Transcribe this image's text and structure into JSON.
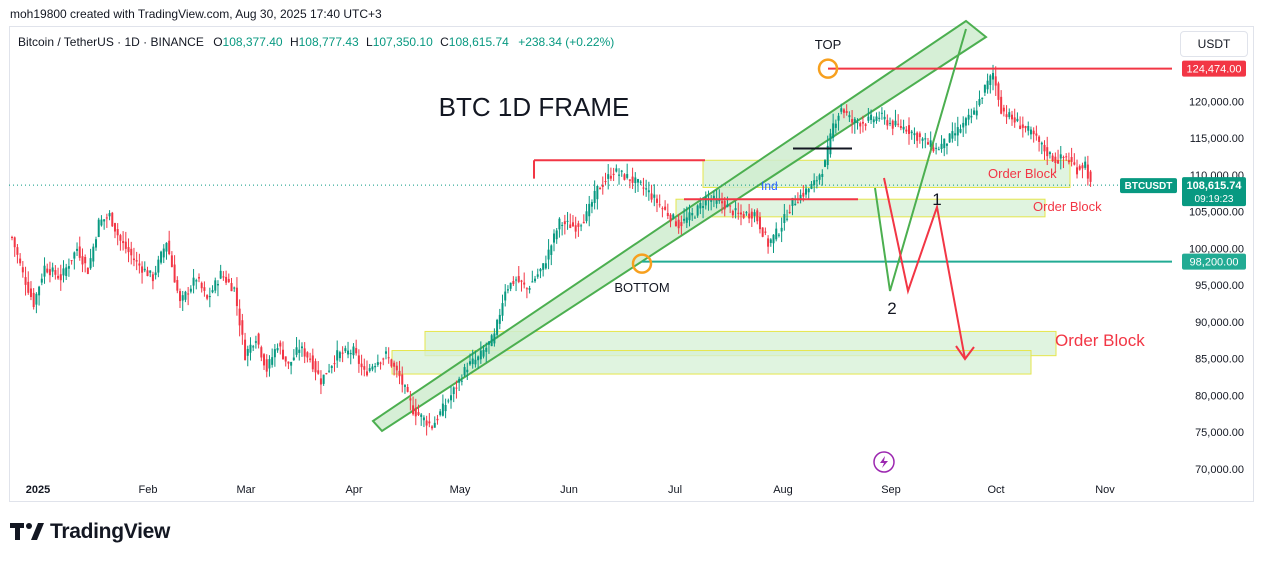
{
  "credit": "moh19800 created with TradingView.com, Aug 30, 2025 17:40 UTC+3",
  "symbol_bar": {
    "name": "Bitcoin / TetherUS · 1D · BINANCE",
    "o_label": "O",
    "o": "108,377.40",
    "h_label": "H",
    "h": "108,777.43",
    "l_label": "L",
    "l": "107,350.10",
    "c_label": "C",
    "c": "108,615.74",
    "change": "+238.34 (+0.22%)"
  },
  "currency_button": "USDT",
  "brand": "TradingView",
  "colors": {
    "up": "#089981",
    "down": "#f23645",
    "channel": "#4caf50",
    "zone_fill": "#d6f0d6",
    "zone_border": "#e6e64c",
    "accent_red": "#f23645",
    "accent_green": "#22ab94"
  },
  "chart_data": {
    "type": "candlestick",
    "title": "BTC 1D FRAME",
    "x_tick_labels": [
      "2025",
      "Feb",
      "Mar",
      "Apr",
      "May",
      "Jun",
      "Jul",
      "Aug",
      "Sep",
      "Oct",
      "Nov"
    ],
    "y_tick_labels": [
      "125,000.00",
      "120,000.00",
      "115,000.00",
      "110,000.00",
      "105,000.00",
      "100,000.00",
      "95,000.00",
      "90,000.00",
      "85,000.00",
      "80,000.00",
      "75,000.00",
      "70,000.00"
    ],
    "y_range": [
      69000,
      127500
    ],
    "price_tags": [
      {
        "label": "124,474.00",
        "value": 124474,
        "color": "#f23645"
      },
      {
        "label": "98,200.00",
        "value": 98200,
        "color": "#22ab94"
      }
    ],
    "current_price": {
      "symbol": "BTCUSDT",
      "price": "108,615.74",
      "countdown": "09:19:23",
      "value": 108615.74
    },
    "annotations": {
      "top": "TOP",
      "bottom": "BOTTOM",
      "order_block_1": "Order Block",
      "order_block_2": "Order Block",
      "order_block_3": "Order Block",
      "path_label_1": "1",
      "path_label_2": "2",
      "ind": "Ind"
    },
    "key_levels": [
      {
        "name": "top",
        "value": 124474
      },
      {
        "name": "bottom",
        "value": 98200
      }
    ],
    "order_blocks": [
      {
        "low": 108300,
        "high": 112000
      },
      {
        "low": 104300,
        "high": 106700
      },
      {
        "low": 85400,
        "high": 88700
      },
      {
        "low": 82900,
        "high": 86100
      }
    ],
    "grid": false,
    "legend": "none"
  }
}
